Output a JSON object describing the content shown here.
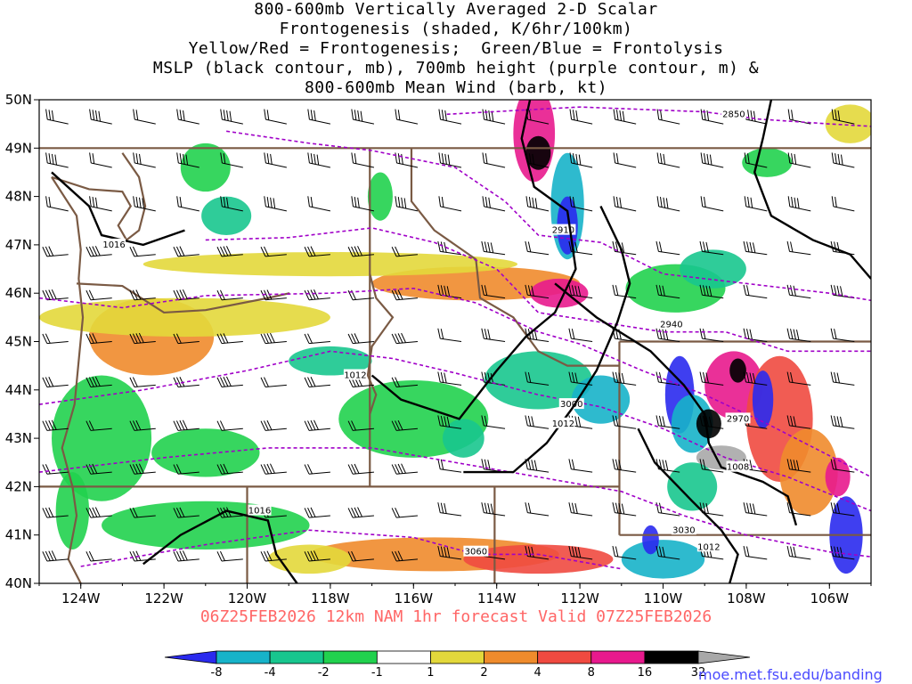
{
  "title_lines": [
    "800-600mb Vertically Averaged 2-D Scalar",
    "Frontogenesis (shaded, K/6hr/100km)",
    "Yellow/Red = Frontogenesis;  Green/Blue = Frontolysis",
    "MSLP (black contour, mb), 700mb height (purple contour, m) &",
    "800-600mb Mean Wind (barb, kt)"
  ],
  "valid_text": "06Z25FEB2026 12km NAM 1hr forecast Valid 07Z25FEB2026",
  "credit": "moe.met.fsu.edu/banding",
  "map": {
    "lon_range": [
      -125,
      -105
    ],
    "lat_range": [
      40,
      50
    ],
    "lat_ticks": [
      "40N",
      "41N",
      "42N",
      "43N",
      "44N",
      "45N",
      "46N",
      "47N",
      "48N",
      "49N",
      "50N"
    ],
    "lon_ticks": [
      "124W",
      "122W",
      "120W",
      "118W",
      "116W",
      "114W",
      "112W",
      "110W",
      "108W",
      "106W"
    ]
  },
  "colorbar": {
    "labels": [
      "-8",
      "-4",
      "-2",
      "-1",
      "1",
      "2",
      "4",
      "8",
      "16",
      "32"
    ],
    "colors": [
      "#2a2aee",
      "#17b3c9",
      "#18c68e",
      "#21d14e",
      "#ffffff",
      "#e3d83b",
      "#ef8b2c",
      "#f04a40",
      "#e8198d",
      "#000000",
      "#a8a8a8"
    ]
  },
  "colors": {
    "mslp": "#000000",
    "height": "#a000c8",
    "borders": "#7a5a44",
    "valid_text": "#ff6666",
    "credit": "#4a4aff"
  },
  "height_contours": [
    {
      "label": "2850",
      "points": [
        [
          -115.2,
          49.7
        ],
        [
          -112,
          49.85
        ],
        [
          -109,
          49.75
        ],
        [
          -107.7,
          49.6
        ],
        [
          -106,
          49.5
        ],
        [
          -105,
          49.45
        ]
      ],
      "label_at": [
        -108.3,
        49.7
      ]
    },
    {
      "label": "2910",
      "points": [
        [
          -120.5,
          49.35
        ],
        [
          -118.5,
          49.1
        ],
        [
          -117,
          48.95
        ],
        [
          -115,
          48.6
        ],
        [
          -113.8,
          47.9
        ],
        [
          -113,
          47.2
        ],
        [
          -111.5,
          47.05
        ],
        [
          -110,
          46.4
        ],
        [
          -108,
          46.2
        ],
        [
          -106,
          46
        ],
        [
          -105,
          45.85
        ]
      ],
      "label_at": [
        -112.4,
        47.3
      ]
    },
    {
      "label": "2940",
      "points": [
        [
          -121,
          47.1
        ],
        [
          -119,
          47.15
        ],
        [
          -117,
          47.35
        ],
        [
          -115.5,
          47.05
        ],
        [
          -114,
          46.5
        ],
        [
          -113,
          45.6
        ],
        [
          -111.5,
          45.4
        ],
        [
          -110,
          45.2
        ],
        [
          -108.5,
          45.2
        ],
        [
          -107,
          44.8
        ],
        [
          -105,
          44.8
        ]
      ],
      "label_at": [
        -109.8,
        45.35
      ]
    },
    {
      "label": "2970",
      "points": [
        [
          -125,
          45.9
        ],
        [
          -123,
          45.7
        ],
        [
          -121,
          45.95
        ],
        [
          -118,
          46
        ],
        [
          -116,
          46.1
        ],
        [
          -114.5,
          45.8
        ],
        [
          -113,
          45.2
        ],
        [
          -112,
          44.95
        ],
        [
          -110.5,
          44.4
        ],
        [
          -109,
          43.9
        ],
        [
          -107.5,
          43.3
        ],
        [
          -105,
          42.2
        ]
      ],
      "label_at": [
        -108.2,
        43.4
      ]
    },
    {
      "label": "3000",
      "points": [
        [
          -125,
          43.7
        ],
        [
          -122.5,
          44
        ],
        [
          -120,
          44.4
        ],
        [
          -118,
          44.8
        ],
        [
          -116.5,
          44.65
        ],
        [
          -115,
          44.35
        ],
        [
          -113,
          43.9
        ],
        [
          -111.5,
          43.65
        ],
        [
          -110,
          43.2
        ],
        [
          -108.5,
          42.6
        ],
        [
          -107,
          42.2
        ],
        [
          -105,
          41.5
        ]
      ],
      "label_at": [
        -112.2,
        43.7
      ]
    },
    {
      "label": "3030",
      "points": [
        [
          -125,
          42.3
        ],
        [
          -122,
          42.6
        ],
        [
          -119.5,
          42.8
        ],
        [
          -117,
          42.8
        ],
        [
          -115,
          42.5
        ],
        [
          -113,
          42.2
        ],
        [
          -111,
          41.9
        ],
        [
          -109.5,
          41.4
        ],
        [
          -108,
          41
        ],
        [
          -106,
          40.65
        ],
        [
          -105,
          40.55
        ]
      ],
      "label_at": [
        -109.5,
        41.1
      ]
    },
    {
      "label": "3060",
      "points": [
        [
          -124,
          40.35
        ],
        [
          -121,
          40.8
        ],
        [
          -118.5,
          41.1
        ],
        [
          -116,
          40.95
        ],
        [
          -114.5,
          40.6
        ],
        [
          -113,
          40.6
        ],
        [
          -111,
          40.3
        ]
      ],
      "label_at": [
        -114.5,
        40.65
      ]
    }
  ],
  "mslp_contours": [
    {
      "label": "1016",
      "points": [
        [
          -124.7,
          48.5
        ],
        [
          -123.8,
          47.8
        ],
        [
          -123.5,
          47.2
        ],
        [
          -122.5,
          47
        ],
        [
          -121.5,
          47.3
        ]
      ],
      "label_at": [
        -123.2,
        47
      ]
    },
    {
      "label": "1012",
      "points": [
        [
          -113.2,
          50
        ],
        [
          -113.4,
          49.2
        ],
        [
          -113.1,
          48.2
        ],
        [
          -112.3,
          47.7
        ],
        [
          -112.1,
          46.5
        ],
        [
          -112.6,
          45.6
        ],
        [
          -113.3,
          45.1
        ],
        [
          -114,
          44.4
        ],
        [
          -114.9,
          43.4
        ],
        [
          -116.3,
          43.8
        ],
        [
          -117,
          44.3
        ]
      ],
      "label_at": [
        -117.4,
        44.3
      ]
    },
    {
      "label": "1008",
      "points": [
        [
          -112.6,
          46.2
        ],
        [
          -111.6,
          45.5
        ],
        [
          -110.3,
          44.8
        ],
        [
          -109.5,
          44.1
        ],
        [
          -109,
          43.5
        ],
        [
          -108.9,
          42.9
        ],
        [
          -108.6,
          42.4
        ],
        [
          -107.6,
          42.1
        ],
        [
          -107,
          41.8
        ],
        [
          -106.8,
          41.2
        ]
      ],
      "label_at": [
        -108.2,
        42.4
      ]
    },
    {
      "label": "1012",
      "points": [
        [
          -111.5,
          47.8
        ],
        [
          -111,
          46.9
        ],
        [
          -110.8,
          46.2
        ],
        [
          -111.1,
          45.4
        ],
        [
          -111.6,
          44.4
        ],
        [
          -112.2,
          43.6
        ],
        [
          -112.8,
          42.9
        ],
        [
          -113.6,
          42.3
        ],
        [
          -114.8,
          42.3
        ]
      ],
      "label_at": [
        -112.4,
        43.3
      ]
    },
    {
      "label": "1012",
      "points": [
        [
          -110.6,
          43.2
        ],
        [
          -110.2,
          42.5
        ],
        [
          -109.3,
          41.7
        ],
        [
          -108.6,
          41.1
        ],
        [
          -108.2,
          40.6
        ],
        [
          -108.4,
          40
        ]
      ],
      "label_at": [
        -108.9,
        40.75
      ]
    },
    {
      "label": "1016",
      "points": [
        [
          -122.5,
          40.4
        ],
        [
          -121.6,
          41
        ],
        [
          -120.5,
          41.5
        ],
        [
          -119.5,
          41.3
        ],
        [
          -119.3,
          40.6
        ],
        [
          -118.8,
          40
        ]
      ],
      "label_at": [
        -119.7,
        41.5
      ]
    },
    {
      "label": "",
      "points": [
        [
          -107.4,
          50
        ],
        [
          -107.6,
          49.2
        ],
        [
          -107.8,
          48.5
        ],
        [
          -107.4,
          47.6
        ],
        [
          -106.4,
          47.1
        ],
        [
          -105.5,
          46.8
        ],
        [
          -105,
          46.3
        ]
      ],
      "label_at": null
    }
  ],
  "frontogenesis_blobs": [
    {
      "lon": -113.1,
      "lat": 49.3,
      "rx": 0.5,
      "ry": 1.0,
      "level": 8
    },
    {
      "lon": -113.0,
      "lat": 48.9,
      "rx": 0.3,
      "ry": 0.35,
      "level": 9
    },
    {
      "lon": -112.3,
      "lat": 47.8,
      "rx": 0.4,
      "ry": 1.1,
      "level": 1
    },
    {
      "lon": -112.3,
      "lat": 47.4,
      "rx": 0.25,
      "ry": 0.6,
      "level": 0
    },
    {
      "lon": -114.5,
      "lat": 46.2,
      "rx": 2.5,
      "ry": 0.35,
      "level": 6
    },
    {
      "lon": -112.5,
      "lat": 46.0,
      "rx": 0.7,
      "ry": 0.3,
      "level": 8
    },
    {
      "lon": -118.0,
      "lat": 46.6,
      "rx": 4.5,
      "ry": 0.25,
      "level": 5
    },
    {
      "lon": -122.3,
      "lat": 45.1,
      "rx": 1.5,
      "ry": 0.8,
      "level": 6
    },
    {
      "lon": -121.5,
      "lat": 45.5,
      "rx": 3.5,
      "ry": 0.4,
      "level": 5
    },
    {
      "lon": -123.5,
      "lat": 43.0,
      "rx": 1.2,
      "ry": 1.3,
      "level": 3
    },
    {
      "lon": -121.0,
      "lat": 42.7,
      "rx": 1.3,
      "ry": 0.5,
      "level": 3
    },
    {
      "lon": -116.0,
      "lat": 43.4,
      "rx": 1.8,
      "ry": 0.8,
      "level": 3
    },
    {
      "lon": -113.0,
      "lat": 44.2,
      "rx": 1.3,
      "ry": 0.6,
      "level": 2
    },
    {
      "lon": -111.5,
      "lat": 43.8,
      "rx": 0.7,
      "ry": 0.5,
      "level": 1
    },
    {
      "lon": -109.6,
      "lat": 43.9,
      "rx": 0.35,
      "ry": 0.8,
      "level": 0
    },
    {
      "lon": -109.3,
      "lat": 43.3,
      "rx": 0.5,
      "ry": 0.6,
      "level": 1
    },
    {
      "lon": -108.9,
      "lat": 43.3,
      "rx": 0.3,
      "ry": 0.3,
      "level": 9
    },
    {
      "lon": -108.6,
      "lat": 42.6,
      "rx": 0.6,
      "ry": 0.25,
      "level": 10
    },
    {
      "lon": -108.3,
      "lat": 44.1,
      "rx": 0.7,
      "ry": 0.7,
      "level": 8
    },
    {
      "lon": -108.2,
      "lat": 44.4,
      "rx": 0.2,
      "ry": 0.25,
      "level": 9
    },
    {
      "lon": -107.2,
      "lat": 43.4,
      "rx": 0.8,
      "ry": 1.3,
      "level": 7
    },
    {
      "lon": -107.6,
      "lat": 43.8,
      "rx": 0.25,
      "ry": 0.6,
      "level": 0
    },
    {
      "lon": -106.5,
      "lat": 42.3,
      "rx": 0.7,
      "ry": 0.9,
      "level": 6
    },
    {
      "lon": -105.6,
      "lat": 41.0,
      "rx": 0.4,
      "ry": 0.8,
      "level": 0
    },
    {
      "lon": -105.8,
      "lat": 42.2,
      "rx": 0.3,
      "ry": 0.4,
      "level": 8
    },
    {
      "lon": -109.3,
      "lat": 42.0,
      "rx": 0.6,
      "ry": 0.5,
      "level": 2
    },
    {
      "lon": -110.0,
      "lat": 40.5,
      "rx": 1.0,
      "ry": 0.4,
      "level": 1
    },
    {
      "lon": -110.3,
      "lat": 40.9,
      "rx": 0.2,
      "ry": 0.3,
      "level": 0
    },
    {
      "lon": -115.5,
      "lat": 40.6,
      "rx": 3.0,
      "ry": 0.35,
      "level": 6
    },
    {
      "lon": -113.0,
      "lat": 40.5,
      "rx": 1.8,
      "ry": 0.3,
      "level": 7
    },
    {
      "lon": -121.0,
      "lat": 41.2,
      "rx": 2.5,
      "ry": 0.5,
      "level": 3
    },
    {
      "lon": -118.5,
      "lat": 40.5,
      "rx": 1.0,
      "ry": 0.3,
      "level": 5
    },
    {
      "lon": -109.7,
      "lat": 46.1,
      "rx": 1.2,
      "ry": 0.5,
      "level": 3
    },
    {
      "lon": -108.8,
      "lat": 46.5,
      "rx": 0.8,
      "ry": 0.4,
      "level": 2
    },
    {
      "lon": -120.5,
      "lat": 47.6,
      "rx": 0.6,
      "ry": 0.4,
      "level": 2
    },
    {
      "lon": -122.5,
      "lat": 48.4,
      "rx": 0.5,
      "ry": 0.5,
      "level": 4
    },
    {
      "lon": -121.0,
      "lat": 48.6,
      "rx": 0.6,
      "ry": 0.5,
      "level": 3
    },
    {
      "lon": -119.5,
      "lat": 49.0,
      "rx": 0.4,
      "ry": 0.4,
      "level": 4
    },
    {
      "lon": -116.8,
      "lat": 48.0,
      "rx": 0.3,
      "ry": 0.5,
      "level": 3
    },
    {
      "lon": -118.0,
      "lat": 44.6,
      "rx": 1.0,
      "ry": 0.3,
      "level": 2
    },
    {
      "lon": -124.2,
      "lat": 41.5,
      "rx": 0.4,
      "ry": 0.8,
      "level": 3
    },
    {
      "lon": -105.5,
      "lat": 49.5,
      "rx": 0.6,
      "ry": 0.4,
      "level": 5
    },
    {
      "lon": -107.5,
      "lat": 48.7,
      "rx": 0.6,
      "ry": 0.3,
      "level": 3
    },
    {
      "lon": -114.8,
      "lat": 43.0,
      "rx": 0.5,
      "ry": 0.4,
      "level": 2
    }
  ]
}
